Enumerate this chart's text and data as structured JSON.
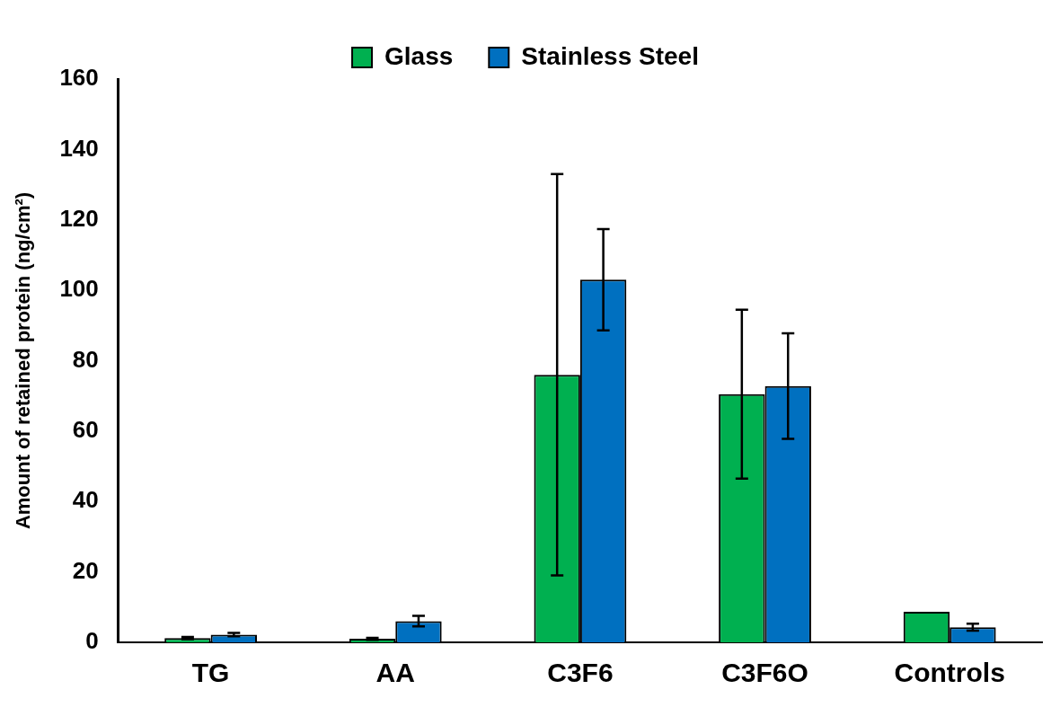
{
  "chart_data": {
    "type": "bar",
    "ylabel": "Amount of retained protein (ng/cm²)",
    "categories": [
      "TG",
      "AA",
      "C3F6",
      "C3F6O",
      "Controls"
    ],
    "series": [
      {
        "name": "Glass",
        "color": "#00b050",
        "values": [
          1.2,
          1.0,
          76,
          70.5,
          8.7
        ],
        "errors": [
          0.3,
          0.3,
          57,
          24,
          null
        ]
      },
      {
        "name": "Stainless Steel",
        "color": "#0070c0",
        "values": [
          2.2,
          6,
          103,
          72.8,
          4.3
        ],
        "errors": [
          0.5,
          1.5,
          14.4,
          15,
          1
        ]
      }
    ],
    "ylim": [
      0,
      160
    ],
    "yticks": [
      0,
      20,
      40,
      60,
      80,
      100,
      120,
      140,
      160
    ],
    "grid": false,
    "legend": "top"
  }
}
